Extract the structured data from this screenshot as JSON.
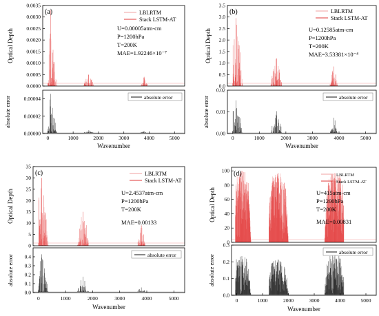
{
  "chart_data": [
    {
      "id": "a",
      "type": "line",
      "panel_label": "(a)",
      "top": {
        "ylabel": "Optical Depth",
        "ylim": [
          0,
          0.0035
        ],
        "yticks": [
          "0.0000",
          "0.0005",
          "0.0010",
          "0.0015",
          "0.0020",
          "0.0025",
          "0.0030",
          "0.0035"
        ],
        "yvals": [
          0,
          0.0005,
          0.001,
          0.0015,
          0.002,
          0.0025,
          0.003,
          0.0035
        ],
        "legend": [
          "LBLRTM",
          "Stack LSTM-AT"
        ],
        "annotations": [
          "U=0.00005atm-cm",
          "P=1200hPa",
          "T=200K",
          "MAE=1.92246×10⁻⁷"
        ],
        "bands": [
          {
            "start": 0,
            "end": 500,
            "peak": 0.0033,
            "peak_at": 120
          },
          {
            "start": 1400,
            "end": 1850,
            "peak": 0.0005,
            "peak_at": 1600
          },
          {
            "start": 3650,
            "end": 3950,
            "peak": 0.0004,
            "peak_at": 3800
          }
        ]
      },
      "bottom": {
        "ylabel": "absolute error",
        "ylim": [
          0,
          5e-05
        ],
        "yticks": [
          "0.00000",
          "0.00002",
          "0.00004"
        ],
        "yvals": [
          0,
          2e-05,
          4e-05
        ],
        "legend": [
          "absolute error"
        ],
        "bands": [
          {
            "start": 0,
            "end": 500,
            "peak": 4.5e-05,
            "peak_at": 120
          },
          {
            "start": 1400,
            "end": 1850,
            "peak": 3e-06,
            "peak_at": 1600
          },
          {
            "start": 3650,
            "end": 3950,
            "peak": 2e-06,
            "peak_at": 3800
          }
        ]
      },
      "xlabel": "Wavenumber",
      "xlim": [
        -200,
        5400
      ],
      "xticks": [
        "0",
        "1000",
        "2000",
        "3000",
        "4000",
        "5000"
      ],
      "xvals": [
        0,
        1000,
        2000,
        3000,
        4000,
        5000
      ]
    },
    {
      "id": "b",
      "type": "line",
      "panel_label": "(b)",
      "top": {
        "ylabel": "Optical Depth",
        "ylim": [
          0,
          3.5
        ],
        "yticks": [
          "0.0",
          "0.5",
          "1.0",
          "1.5",
          "2.0",
          "2.5",
          "3.0",
          "3.5"
        ],
        "yvals": [
          0,
          0.5,
          1,
          1.5,
          2,
          2.5,
          3,
          3.5
        ],
        "legend": [
          "LBLRTM",
          "Stack LSTM-AT"
        ],
        "annotations": [
          "U=0.12585atm-cm",
          "P=1200hPa",
          "T=200K",
          "MAE=3.53381×10⁻⁴"
        ],
        "bands": [
          {
            "start": 0,
            "end": 500,
            "peak": 2.95,
            "peak_at": 120
          },
          {
            "start": 1400,
            "end": 1850,
            "peak": 1.2,
            "peak_at": 1650
          },
          {
            "start": 3650,
            "end": 3950,
            "peak": 0.85,
            "peak_at": 3800
          }
        ]
      },
      "bottom": {
        "ylabel": "absolute error",
        "ylim": [
          0,
          0.02
        ],
        "yticks": [
          "0.00",
          "0.01",
          "0.02"
        ],
        "yvals": [
          0,
          0.01,
          0.02
        ],
        "legend": [
          "absolute error"
        ],
        "bands": [
          {
            "start": 0,
            "end": 500,
            "peak": 0.015,
            "peak_at": 120
          },
          {
            "start": 1400,
            "end": 1850,
            "peak": 0.01,
            "peak_at": 1650
          },
          {
            "start": 3650,
            "end": 3950,
            "peak": 0.007,
            "peak_at": 3800
          }
        ]
      },
      "xlabel": "Wavenumber",
      "xlim": [
        -200,
        5400
      ],
      "xticks": [
        "0",
        "1000",
        "2000",
        "3000",
        "4000",
        "5000"
      ],
      "xvals": [
        0,
        1000,
        2000,
        3000,
        4000,
        5000
      ]
    },
    {
      "id": "c",
      "type": "line",
      "panel_label": "(c)",
      "top": {
        "ylabel": "Optical Depth",
        "ylim": [
          0,
          35
        ],
        "yticks": [
          "0",
          "5",
          "10",
          "15",
          "20",
          "25",
          "30",
          "35"
        ],
        "yvals": [
          0,
          5,
          10,
          15,
          20,
          25,
          30,
          35
        ],
        "legend": [
          "LBLRTM",
          "Stack LSTM-AT"
        ],
        "annotations": [
          "U=2.4537atm-cm",
          "P=1200hPa",
          "T=200K",
          "MAE=0.00133"
        ],
        "bands": [
          {
            "start": 0,
            "end": 500,
            "peak": 30,
            "peak_at": 120
          },
          {
            "start": 1400,
            "end": 1850,
            "peak": 15,
            "peak_at": 1650
          },
          {
            "start": 3650,
            "end": 3950,
            "peak": 9,
            "peak_at": 3800
          }
        ]
      },
      "bottom": {
        "ylabel": "absolute error",
        "ylim": [
          0,
          0.5
        ],
        "yticks": [
          "0.0",
          "0.1",
          "0.2",
          "0.3",
          "0.4"
        ],
        "yvals": [
          0,
          0.1,
          0.2,
          0.3,
          0.4
        ],
        "legend": [
          "absolute error"
        ],
        "bands": [
          {
            "start": 0,
            "end": 500,
            "peak": 0.42,
            "peak_at": 120
          },
          {
            "start": 1400,
            "end": 1850,
            "peak": 0.17,
            "peak_at": 1650
          },
          {
            "start": 3650,
            "end": 3950,
            "peak": 0.05,
            "peak_at": 3800
          }
        ]
      },
      "xlabel": "Wavenumber",
      "xlim": [
        -200,
        5400
      ],
      "xticks": [
        "0",
        "1000",
        "2000",
        "3000",
        "4000",
        "5000"
      ],
      "xvals": [
        0,
        1000,
        2000,
        3000,
        4000,
        5000
      ]
    },
    {
      "id": "d",
      "type": "line",
      "panel_label": "(d)",
      "top": {
        "ylabel": "Optical Depth",
        "ylim": [
          0,
          105
        ],
        "yticks": [
          "0",
          "20",
          "40",
          "60",
          "80",
          "100"
        ],
        "yvals": [
          0,
          20,
          40,
          60,
          80,
          100
        ],
        "legend": [
          "LBLRTM",
          "Stack LSTM-AT"
        ],
        "annotations": [
          "U=415atm-cm",
          "P=1200hPa",
          "T=200K",
          "MAE=0.00831"
        ],
        "bands": [
          {
            "start": -50,
            "end": 650,
            "peak": 100,
            "peak_at": 200
          },
          {
            "start": 1250,
            "end": 2050,
            "peak": 97,
            "peak_at": 1600
          },
          {
            "start": 3350,
            "end": 4150,
            "peak": 97,
            "peak_at": 3800
          }
        ]
      },
      "bottom": {
        "ylabel": "absolute error",
        "ylim": [
          0,
          0.3
        ],
        "yticks": [
          "0.0",
          "0.1",
          "0.2",
          "0.3"
        ],
        "yvals": [
          0,
          0.1,
          0.2,
          0.3
        ],
        "legend": [
          "absolute error"
        ],
        "bands": [
          {
            "start": -50,
            "end": 650,
            "peak": 0.23,
            "peak_at": 200
          },
          {
            "start": 1250,
            "end": 2050,
            "peak": 0.21,
            "peak_at": 1600
          },
          {
            "start": 3350,
            "end": 4150,
            "peak": 0.24,
            "peak_at": 3800
          }
        ]
      },
      "xlabel": "Wavenumber",
      "xlim": [
        -200,
        5400
      ],
      "xticks": [
        "0",
        "1000",
        "2000",
        "3000",
        "4000",
        "5000"
      ],
      "xvals": [
        0,
        1000,
        2000,
        3000,
        4000,
        5000
      ]
    }
  ],
  "colors": {
    "series_true": "#f2a0a0",
    "series_pred": "#e23a3a",
    "error": "#111111",
    "axis": "#000000"
  }
}
